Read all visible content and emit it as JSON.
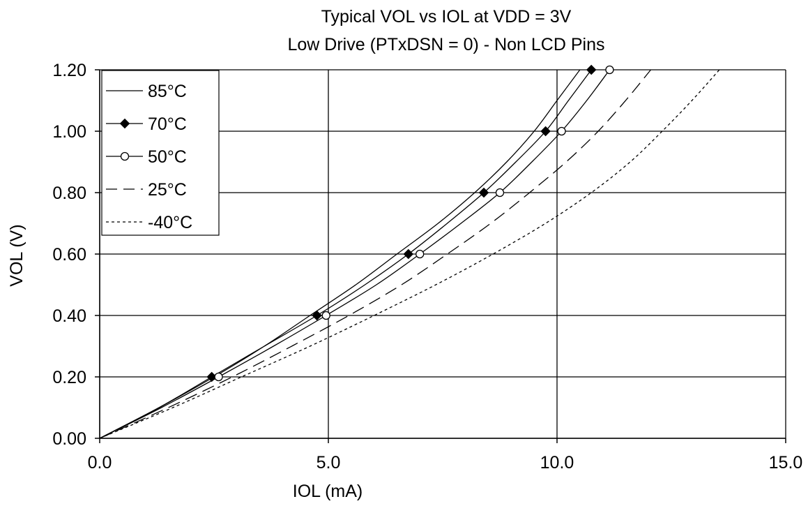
{
  "chart_data": {
    "type": "line",
    "title": "Typical VOL vs IOL at VDD = 3V",
    "subtitle": "Low Drive (PTxDSN = 0) - Non LCD Pins",
    "xlabel": "IOL (mA)",
    "ylabel": "VOL (V)",
    "xlim": [
      0,
      15
    ],
    "ylim": [
      0,
      1.2
    ],
    "x_ticks": [
      "0.0",
      "5.0",
      "10.0",
      "15.0"
    ],
    "y_ticks": [
      "0.00",
      "0.20",
      "0.40",
      "0.60",
      "0.80",
      "1.00",
      "1.20"
    ],
    "grid": true,
    "legend_position": "top-left",
    "series": [
      {
        "name": "85°C",
        "style": "solid",
        "marker": "none",
        "points": [
          [
            0,
            0
          ],
          [
            1.3,
            0.1
          ],
          [
            2.5,
            0.2
          ],
          [
            3.6,
            0.3
          ],
          [
            4.6,
            0.4
          ],
          [
            5.6,
            0.5
          ],
          [
            6.5,
            0.6
          ],
          [
            7.4,
            0.7
          ],
          [
            8.2,
            0.8
          ],
          [
            8.9,
            0.9
          ],
          [
            9.5,
            1.0
          ],
          [
            10.0,
            1.1
          ],
          [
            10.5,
            1.2
          ]
        ]
      },
      {
        "name": "70°C",
        "style": "solid",
        "marker": "filled-diamond",
        "points": [
          [
            0,
            0
          ],
          [
            1.3,
            0.1
          ],
          [
            2.45,
            0.2
          ],
          [
            3.6,
            0.3
          ],
          [
            4.75,
            0.4
          ],
          [
            5.8,
            0.5
          ],
          [
            6.75,
            0.6
          ],
          [
            7.6,
            0.7
          ],
          [
            8.4,
            0.8
          ],
          [
            9.1,
            0.9
          ],
          [
            9.75,
            1.0
          ],
          [
            10.25,
            1.1
          ],
          [
            10.75,
            1.2
          ]
        ]
      },
      {
        "name": "50°C",
        "style": "solid",
        "marker": "open-circle",
        "points": [
          [
            0,
            0
          ],
          [
            1.35,
            0.1
          ],
          [
            2.6,
            0.2
          ],
          [
            3.8,
            0.3
          ],
          [
            4.95,
            0.4
          ],
          [
            6.05,
            0.5
          ],
          [
            7.0,
            0.6
          ],
          [
            7.9,
            0.7
          ],
          [
            8.75,
            0.8
          ],
          [
            9.45,
            0.9
          ],
          [
            10.1,
            1.0
          ],
          [
            10.65,
            1.1
          ],
          [
            11.15,
            1.2
          ]
        ]
      },
      {
        "name": "25°C",
        "style": "dashed",
        "marker": "none",
        "points": [
          [
            0,
            0
          ],
          [
            1.5,
            0.1
          ],
          [
            2.9,
            0.2
          ],
          [
            4.2,
            0.3
          ],
          [
            5.45,
            0.4
          ],
          [
            6.6,
            0.5
          ],
          [
            7.6,
            0.6
          ],
          [
            8.55,
            0.7
          ],
          [
            9.4,
            0.8
          ],
          [
            10.2,
            0.9
          ],
          [
            10.9,
            1.0
          ],
          [
            11.5,
            1.1
          ],
          [
            12.05,
            1.2
          ]
        ]
      },
      {
        "name": "-40°C",
        "style": "dotted",
        "marker": "none",
        "points": [
          [
            0,
            0
          ],
          [
            1.6,
            0.1
          ],
          [
            3.1,
            0.2
          ],
          [
            4.6,
            0.3
          ],
          [
            6.0,
            0.4
          ],
          [
            7.35,
            0.5
          ],
          [
            8.6,
            0.6
          ],
          [
            9.75,
            0.7
          ],
          [
            10.75,
            0.8
          ],
          [
            11.6,
            0.9
          ],
          [
            12.3,
            1.0
          ],
          [
            12.95,
            1.1
          ],
          [
            13.55,
            1.2
          ]
        ]
      }
    ],
    "marker_points": {
      "70°C": [
        [
          2.45,
          0.2
        ],
        [
          4.75,
          0.4
        ],
        [
          6.75,
          0.6
        ],
        [
          8.4,
          0.8
        ],
        [
          9.75,
          1.0
        ],
        [
          10.75,
          1.2
        ]
      ],
      "50°C": [
        [
          2.6,
          0.2
        ],
        [
          4.95,
          0.4
        ],
        [
          7.0,
          0.6
        ],
        [
          8.75,
          0.8
        ],
        [
          10.1,
          1.0
        ],
        [
          11.15,
          1.2
        ]
      ]
    }
  }
}
